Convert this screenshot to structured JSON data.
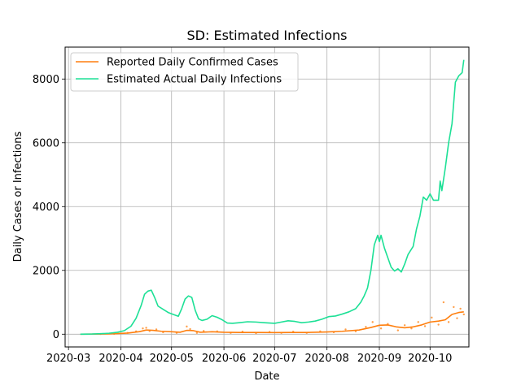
{
  "chart_data": {
    "type": "line",
    "title": "SD: Estimated Infections",
    "xlabel": "Date",
    "ylabel": "Daily Cases or Infections",
    "xlim": [
      "2020-02-28",
      "2020-10-24"
    ],
    "ylim": [
      -400,
      9000
    ],
    "x_ticks": [
      "2020-03",
      "2020-04",
      "2020-05",
      "2020-06",
      "2020-07",
      "2020-08",
      "2020-09",
      "2020-10"
    ],
    "x_tick_labels": [
      "2020-03",
      "2020-04",
      "2020-05",
      "2020-06",
      "2020-07",
      "2020-08",
      "2020-09",
      "2020-10"
    ],
    "y_ticks": [
      0,
      2000,
      4000,
      6000,
      8000
    ],
    "y_tick_labels": [
      "0",
      "2000",
      "4000",
      "6000",
      "8000"
    ],
    "grid": true,
    "legend_position": "top-left",
    "series": [
      {
        "name": "Reported Daily Confirmed Cases",
        "color": "#ff7f0e",
        "style": "line",
        "points": [
          [
            "2020-03-08",
            0
          ],
          [
            "2020-03-15",
            2
          ],
          [
            "2020-03-22",
            5
          ],
          [
            "2020-03-29",
            15
          ],
          [
            "2020-04-05",
            35
          ],
          [
            "2020-04-12",
            80
          ],
          [
            "2020-04-16",
            130
          ],
          [
            "2020-04-20",
            120
          ],
          [
            "2020-04-25",
            90
          ],
          [
            "2020-05-01",
            75
          ],
          [
            "2020-05-06",
            60
          ],
          [
            "2020-05-10",
            120
          ],
          [
            "2020-05-14",
            110
          ],
          [
            "2020-05-18",
            60
          ],
          [
            "2020-05-25",
            75
          ],
          [
            "2020-06-01",
            60
          ],
          [
            "2020-06-10",
            55
          ],
          [
            "2020-06-20",
            55
          ],
          [
            "2020-07-01",
            50
          ],
          [
            "2020-07-10",
            55
          ],
          [
            "2020-07-20",
            55
          ],
          [
            "2020-08-01",
            70
          ],
          [
            "2020-08-10",
            90
          ],
          [
            "2020-08-20",
            130
          ],
          [
            "2020-08-27",
            210
          ],
          [
            "2020-09-01",
            280
          ],
          [
            "2020-09-06",
            290
          ],
          [
            "2020-09-11",
            230
          ],
          [
            "2020-09-16",
            200
          ],
          [
            "2020-09-21",
            230
          ],
          [
            "2020-09-26",
            290
          ],
          [
            "2020-10-01",
            380
          ],
          [
            "2020-10-06",
            410
          ],
          [
            "2020-10-10",
            450
          ],
          [
            "2020-10-14",
            620
          ],
          [
            "2020-10-18",
            680
          ],
          [
            "2020-10-21",
            700
          ]
        ]
      },
      {
        "name": "Estimated Actual Daily Infections",
        "color": "#1de096",
        "style": "line",
        "points": [
          [
            "2020-03-08",
            0
          ],
          [
            "2020-03-15",
            5
          ],
          [
            "2020-03-20",
            15
          ],
          [
            "2020-03-25",
            30
          ],
          [
            "2020-03-30",
            60
          ],
          [
            "2020-04-03",
            110
          ],
          [
            "2020-04-07",
            250
          ],
          [
            "2020-04-10",
            500
          ],
          [
            "2020-04-13",
            900
          ],
          [
            "2020-04-15",
            1250
          ],
          [
            "2020-04-17",
            1350
          ],
          [
            "2020-04-19",
            1380
          ],
          [
            "2020-04-21",
            1150
          ],
          [
            "2020-04-23",
            880
          ],
          [
            "2020-04-26",
            780
          ],
          [
            "2020-04-29",
            680
          ],
          [
            "2020-05-02",
            620
          ],
          [
            "2020-05-05",
            560
          ],
          [
            "2020-05-07",
            800
          ],
          [
            "2020-05-09",
            1100
          ],
          [
            "2020-05-11",
            1200
          ],
          [
            "2020-05-13",
            1150
          ],
          [
            "2020-05-15",
            750
          ],
          [
            "2020-05-17",
            480
          ],
          [
            "2020-05-19",
            430
          ],
          [
            "2020-05-22",
            470
          ],
          [
            "2020-05-25",
            580
          ],
          [
            "2020-05-28",
            530
          ],
          [
            "2020-05-31",
            450
          ],
          [
            "2020-06-03",
            350
          ],
          [
            "2020-06-06",
            340
          ],
          [
            "2020-06-10",
            360
          ],
          [
            "2020-06-15",
            390
          ],
          [
            "2020-06-20",
            380
          ],
          [
            "2020-06-25",
            360
          ],
          [
            "2020-07-01",
            340
          ],
          [
            "2020-07-05",
            380
          ],
          [
            "2020-07-09",
            420
          ],
          [
            "2020-07-13",
            400
          ],
          [
            "2020-07-17",
            360
          ],
          [
            "2020-07-21",
            380
          ],
          [
            "2020-07-25",
            410
          ],
          [
            "2020-07-29",
            470
          ],
          [
            "2020-08-02",
            550
          ],
          [
            "2020-08-06",
            570
          ],
          [
            "2020-08-10",
            630
          ],
          [
            "2020-08-14",
            700
          ],
          [
            "2020-08-18",
            800
          ],
          [
            "2020-08-21",
            1000
          ],
          [
            "2020-08-23",
            1200
          ],
          [
            "2020-08-25",
            1450
          ],
          [
            "2020-08-27",
            2000
          ],
          [
            "2020-08-29",
            2800
          ],
          [
            "2020-08-31",
            3100
          ],
          [
            "2020-09-01",
            2900
          ],
          [
            "2020-09-02",
            3100
          ],
          [
            "2020-09-04",
            2700
          ],
          [
            "2020-09-06",
            2400
          ],
          [
            "2020-09-08",
            2100
          ],
          [
            "2020-09-10",
            1980
          ],
          [
            "2020-09-12",
            2050
          ],
          [
            "2020-09-14",
            1950
          ],
          [
            "2020-09-16",
            2200
          ],
          [
            "2020-09-18",
            2500
          ],
          [
            "2020-09-21",
            2750
          ],
          [
            "2020-09-23",
            3300
          ],
          [
            "2020-09-25",
            3700
          ],
          [
            "2020-09-27",
            4300
          ],
          [
            "2020-09-29",
            4200
          ],
          [
            "2020-10-01",
            4400
          ],
          [
            "2020-10-03",
            4200
          ],
          [
            "2020-10-06",
            4200
          ],
          [
            "2020-10-07",
            4800
          ],
          [
            "2020-10-08",
            4500
          ],
          [
            "2020-10-10",
            5200
          ],
          [
            "2020-10-12",
            6000
          ],
          [
            "2020-10-14",
            6600
          ],
          [
            "2020-10-16",
            7900
          ],
          [
            "2020-10-18",
            8100
          ],
          [
            "2020-10-20",
            8200
          ],
          [
            "2020-10-21",
            8600
          ]
        ]
      },
      {
        "name": "",
        "color": "#ff7f0e",
        "style": "scatter",
        "points": [
          [
            "2020-03-20",
            5
          ],
          [
            "2020-03-28",
            10
          ],
          [
            "2020-04-05",
            40
          ],
          [
            "2020-04-10",
            90
          ],
          [
            "2020-04-14",
            180
          ],
          [
            "2020-04-16",
            200
          ],
          [
            "2020-04-18",
            100
          ],
          [
            "2020-04-22",
            150
          ],
          [
            "2020-04-26",
            60
          ],
          [
            "2020-05-04",
            40
          ],
          [
            "2020-05-10",
            240
          ],
          [
            "2020-05-12",
            160
          ],
          [
            "2020-05-16",
            40
          ],
          [
            "2020-05-20",
            100
          ],
          [
            "2020-05-28",
            90
          ],
          [
            "2020-06-05",
            40
          ],
          [
            "2020-06-12",
            80
          ],
          [
            "2020-06-20",
            30
          ],
          [
            "2020-06-28",
            70
          ],
          [
            "2020-07-05",
            40
          ],
          [
            "2020-07-12",
            80
          ],
          [
            "2020-07-20",
            40
          ],
          [
            "2020-07-28",
            90
          ],
          [
            "2020-08-05",
            60
          ],
          [
            "2020-08-12",
            150
          ],
          [
            "2020-08-18",
            90
          ],
          [
            "2020-08-24",
            230
          ],
          [
            "2020-08-28",
            380
          ],
          [
            "2020-09-02",
            180
          ],
          [
            "2020-09-06",
            320
          ],
          [
            "2020-09-12",
            120
          ],
          [
            "2020-09-16",
            280
          ],
          [
            "2020-09-20",
            180
          ],
          [
            "2020-09-24",
            380
          ],
          [
            "2020-09-28",
            250
          ],
          [
            "2020-10-02",
            520
          ],
          [
            "2020-10-06",
            300
          ],
          [
            "2020-10-09",
            1000
          ],
          [
            "2020-10-12",
            380
          ],
          [
            "2020-10-15",
            850
          ],
          [
            "2020-10-17",
            500
          ],
          [
            "2020-10-19",
            800
          ],
          [
            "2020-10-21",
            620
          ]
        ]
      }
    ]
  }
}
